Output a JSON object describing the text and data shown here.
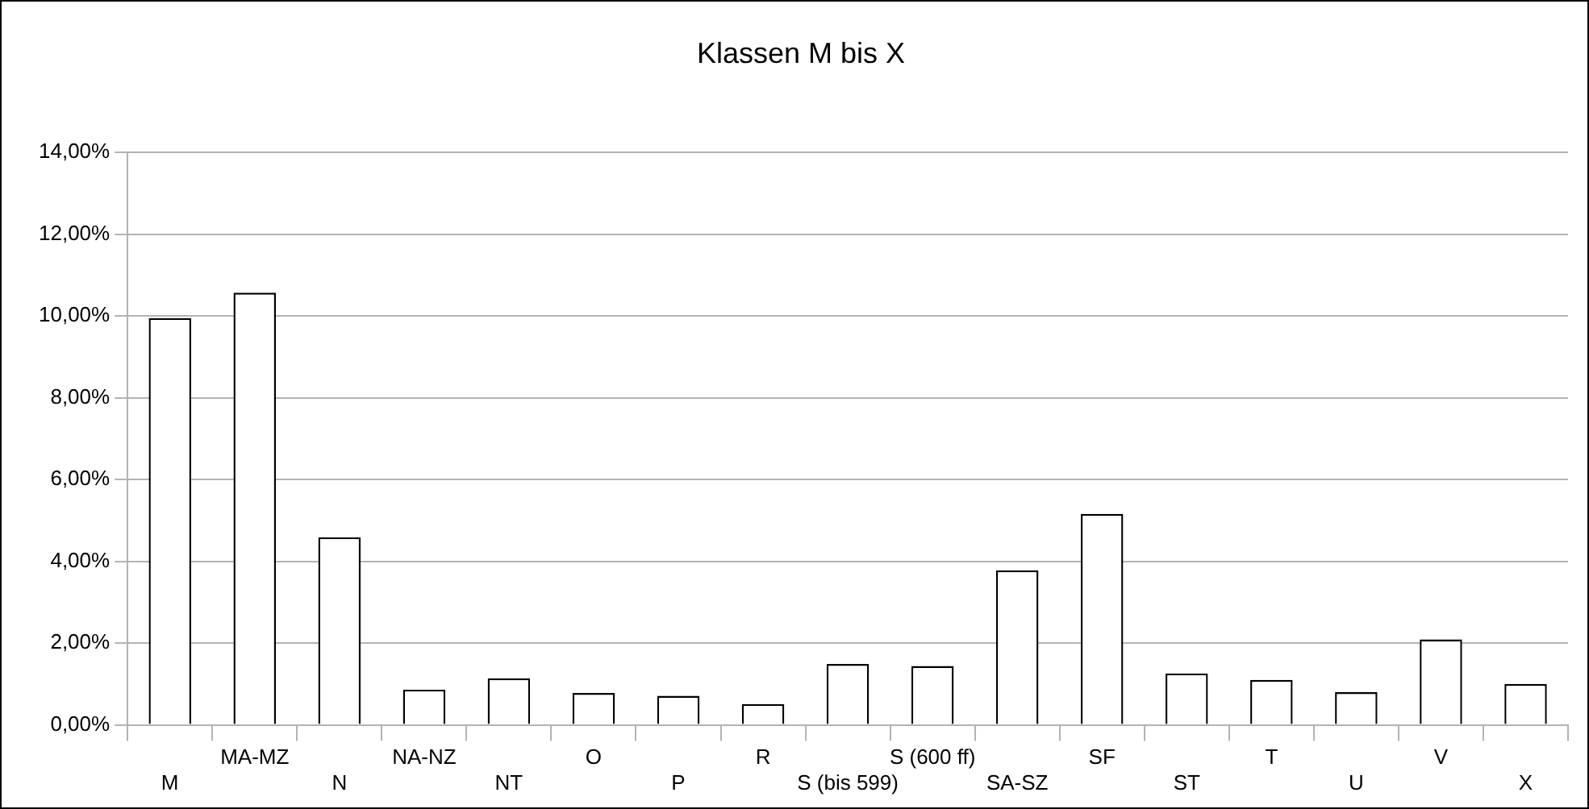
{
  "chart_data": {
    "type": "bar",
    "title": "Klassen M bis X",
    "categories": [
      "M",
      "MA-MZ",
      "N",
      "NA-NZ",
      "NT",
      "O",
      "P",
      "R",
      "S (bis 599)",
      "S (600 ff)",
      "SA-SZ",
      "SF",
      "ST",
      "T",
      "U",
      "V",
      "X"
    ],
    "values": [
      9.95,
      10.57,
      4.59,
      0.86,
      1.14,
      0.78,
      0.71,
      0.51,
      1.49,
      1.44,
      3.78,
      5.16,
      1.26,
      1.1,
      0.8,
      2.09,
      1.0
    ],
    "color": "#ffffff",
    "ylim": [
      0,
      14
    ],
    "yticks": [
      {
        "value": 0,
        "label": "0,00%"
      },
      {
        "value": 2,
        "label": "2,00%"
      },
      {
        "value": 4,
        "label": "4,00%"
      },
      {
        "value": 6,
        "label": "6,00%"
      },
      {
        "value": 8,
        "label": "8,00%"
      },
      {
        "value": 10,
        "label": "10,00%"
      },
      {
        "value": 12,
        "label": "12,00%"
      },
      {
        "value": 14,
        "label": "14,00%"
      }
    ],
    "grid": "y",
    "legend": false
  }
}
